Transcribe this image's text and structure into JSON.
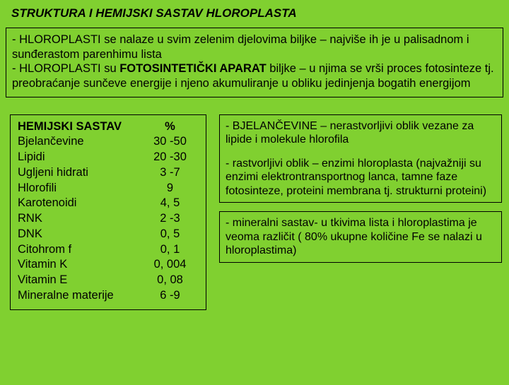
{
  "colors": {
    "background": "#80d030",
    "border": "#000000",
    "text": "#000000"
  },
  "title": "STRUKTURA I HEMIJSKI SASTAV HLOROPLASTA",
  "intro": {
    "line1_a": "- HLOROPLASTI se nalaze u svim zelenim djelovima biljke – najviše ih je u palisadnom i sunđerastom parenhimu lista",
    "line2_pre": "- HLOROPLASTI su ",
    "line2_bold": "FOTOSINTETIČKI APARAT",
    "line2_post": " biljke – u njima se vrši proces fotosinteze tj. preobraćanje sunčeve energije i njeno akumuliranje u obliku jedinjenja bogatih energijom"
  },
  "table": {
    "header_col1": "HEMIJSKI SASTAV",
    "header_col2": "%",
    "rows": [
      {
        "name": "Bjelančevine",
        "pct": "30 -50"
      },
      {
        "name": "Lipidi",
        "pct": "20 -30"
      },
      {
        "name": "Ugljeni hidrati",
        "pct": "3 -7"
      },
      {
        "name": "Hlorofili",
        "pct": "9"
      },
      {
        "name": "Karotenoidi",
        "pct": "4, 5"
      },
      {
        "name": "RNK",
        "pct": "2 -3"
      },
      {
        "name": "DNK",
        "pct": "0, 5"
      },
      {
        "name": "Citohrom f",
        "pct": "0, 1"
      },
      {
        "name": "Vitamin K",
        "pct": "0, 004"
      },
      {
        "name": "Vitamin E",
        "pct": "0, 08"
      },
      {
        "name": "Mineralne materije",
        "pct": "6 -9"
      }
    ]
  },
  "notes": {
    "box1_p1": "- BJELANČEVINE – nerastvorljivi oblik vezane za lipide i molekule hlorofila",
    "box1_p2": "- rastvorljivi oblik – enzimi hloroplasta (najvažniji su enzimi elektrontransportnog lanca, tamne faze fotosinteze, proteini membrana tj. strukturni proteini)",
    "box2": "- mineralni sastav- u tkivima lista i hloroplastima je veoma različit ( 80% ukupne količine Fe se nalazi u hloroplastima)"
  }
}
